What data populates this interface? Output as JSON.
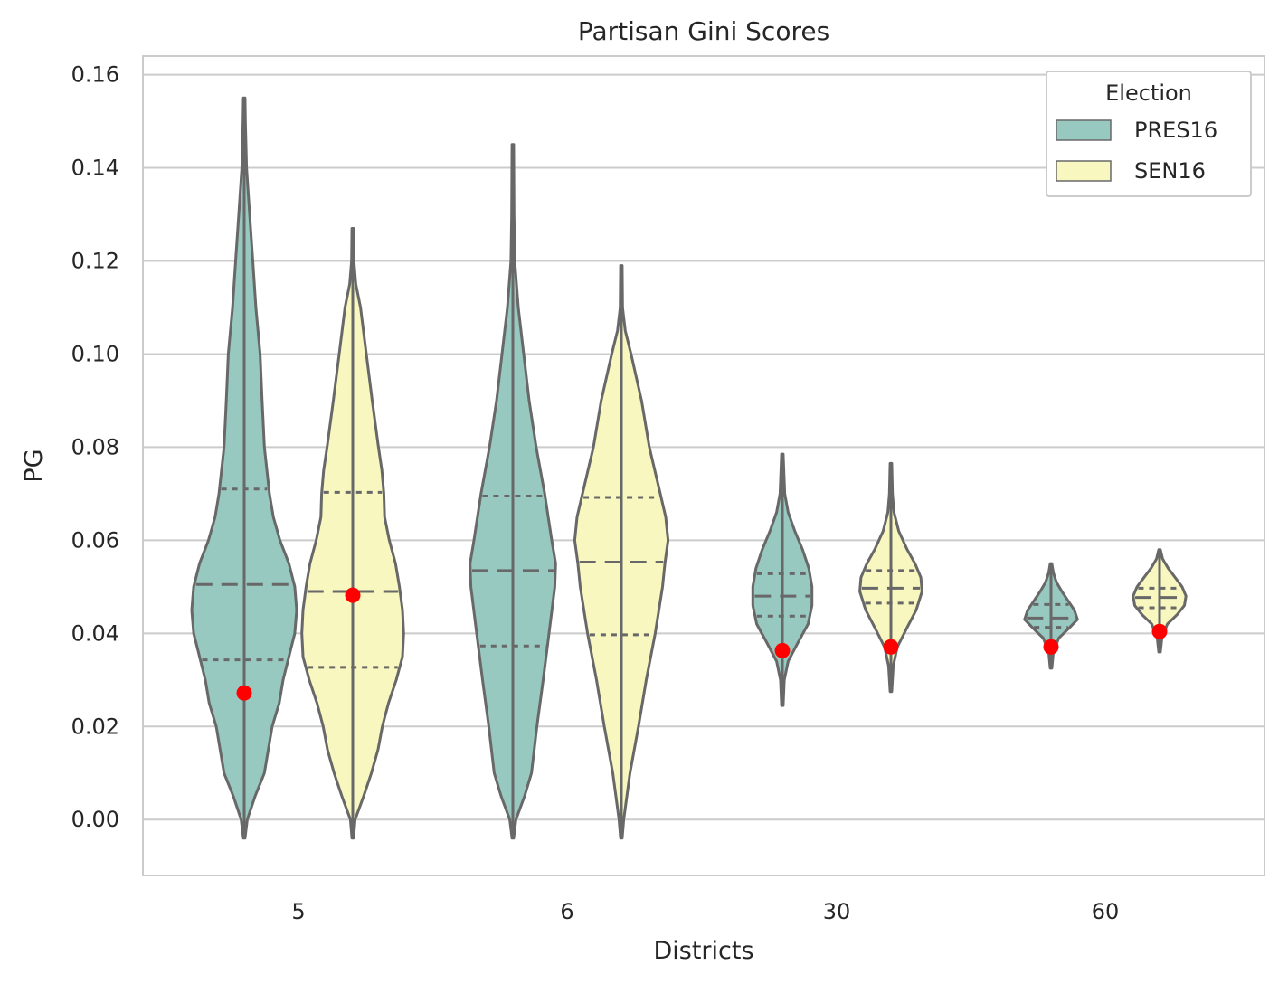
{
  "chart_data": {
    "type": "violin",
    "title": "Partisan Gini Scores",
    "xlabel": "Districts",
    "ylabel": "PG",
    "categories": [
      "5",
      "6",
      "30",
      "60"
    ],
    "ylim": [
      -0.012,
      0.164
    ],
    "yticks": [
      "0.00",
      "0.02",
      "0.04",
      "0.06",
      "0.08",
      "0.10",
      "0.12",
      "0.14",
      "0.16"
    ],
    "grid": true,
    "legend": {
      "title": "Election",
      "placement": "top-right"
    },
    "series": [
      {
        "name": "PRES16",
        "color": "#98c9c0",
        "groups": [
          {
            "category": "5",
            "min": -0.004,
            "max": 0.155,
            "q1": 0.0343,
            "median": 0.0505,
            "q3": 0.071,
            "marker": 0.0272,
            "profile": [
              [
                -0.004,
                0.002
              ],
              [
                0.0,
                0.008
              ],
              [
                0.005,
                0.028
              ],
              [
                0.01,
                0.052
              ],
              [
                0.015,
                0.062
              ],
              [
                0.02,
                0.072
              ],
              [
                0.025,
                0.09
              ],
              [
                0.03,
                0.1
              ],
              [
                0.035,
                0.115
              ],
              [
                0.04,
                0.13
              ],
              [
                0.045,
                0.135
              ],
              [
                0.05,
                0.13
              ],
              [
                0.055,
                0.115
              ],
              [
                0.06,
                0.092
              ],
              [
                0.065,
                0.075
              ],
              [
                0.07,
                0.065
              ],
              [
                0.08,
                0.052
              ],
              [
                0.09,
                0.046
              ],
              [
                0.1,
                0.041
              ],
              [
                0.11,
                0.03
              ],
              [
                0.12,
                0.022
              ],
              [
                0.13,
                0.014
              ],
              [
                0.14,
                0.006
              ],
              [
                0.15,
                0.003
              ],
              [
                0.155,
                0.002
              ]
            ]
          },
          {
            "category": "6",
            "min": -0.004,
            "max": 0.145,
            "q1": 0.0373,
            "median": 0.0535,
            "q3": 0.0695,
            "marker": null,
            "profile": [
              [
                -0.004,
                0.002
              ],
              [
                0.0,
                0.008
              ],
              [
                0.005,
                0.03
              ],
              [
                0.01,
                0.048
              ],
              [
                0.02,
                0.062
              ],
              [
                0.03,
                0.078
              ],
              [
                0.04,
                0.093
              ],
              [
                0.05,
                0.108
              ],
              [
                0.055,
                0.11
              ],
              [
                0.06,
                0.1
              ],
              [
                0.07,
                0.082
              ],
              [
                0.08,
                0.06
              ],
              [
                0.09,
                0.042
              ],
              [
                0.1,
                0.028
              ],
              [
                0.11,
                0.014
              ],
              [
                0.12,
                0.005
              ],
              [
                0.13,
                0.003
              ],
              [
                0.145,
                0.002
              ]
            ]
          }
        ]
      },
      {
        "name": "SEN16",
        "color": "#f8f7bf",
        "groups": [
          {
            "category": "5",
            "min": -0.004,
            "max": 0.127,
            "q1": 0.0327,
            "median": 0.049,
            "q3": 0.0703,
            "marker": 0.0482,
            "profile": [
              [
                -0.004,
                0.002
              ],
              [
                0.0,
                0.006
              ],
              [
                0.005,
                0.028
              ],
              [
                0.01,
                0.048
              ],
              [
                0.015,
                0.065
              ],
              [
                0.02,
                0.076
              ],
              [
                0.025,
                0.092
              ],
              [
                0.03,
                0.112
              ],
              [
                0.035,
                0.128
              ],
              [
                0.04,
                0.131
              ],
              [
                0.045,
                0.128
              ],
              [
                0.05,
                0.12
              ],
              [
                0.055,
                0.11
              ],
              [
                0.06,
                0.094
              ],
              [
                0.065,
                0.082
              ],
              [
                0.07,
                0.08
              ],
              [
                0.075,
                0.075
              ],
              [
                0.08,
                0.066
              ],
              [
                0.09,
                0.05
              ],
              [
                0.1,
                0.035
              ],
              [
                0.11,
                0.02
              ],
              [
                0.115,
                0.008
              ],
              [
                0.12,
                0.003
              ],
              [
                0.127,
                0.002
              ]
            ]
          },
          {
            "category": "6",
            "min": -0.004,
            "max": 0.119,
            "q1": 0.0397,
            "median": 0.0553,
            "q3": 0.0692,
            "marker": null,
            "profile": [
              [
                -0.004,
                0.002
              ],
              [
                0.0,
                0.006
              ],
              [
                0.01,
                0.022
              ],
              [
                0.02,
                0.044
              ],
              [
                0.03,
                0.064
              ],
              [
                0.04,
                0.087
              ],
              [
                0.05,
                0.106
              ],
              [
                0.055,
                0.112
              ],
              [
                0.06,
                0.12
              ],
              [
                0.065,
                0.114
              ],
              [
                0.07,
                0.1
              ],
              [
                0.08,
                0.072
              ],
              [
                0.09,
                0.052
              ],
              [
                0.1,
                0.025
              ],
              [
                0.105,
                0.01
              ],
              [
                0.11,
                0.003
              ],
              [
                0.119,
                0.002
              ]
            ]
          }
        ]
      },
      {
        "name": "PRES16",
        "color": "#98c9c0",
        "groups": [
          {
            "category": "30",
            "min": 0.0245,
            "max": 0.0785,
            "q1": 0.0437,
            "median": 0.048,
            "q3": 0.0528,
            "marker": 0.0363,
            "profile": [
              [
                0.0245,
                0.002
              ],
              [
                0.03,
                0.005
              ],
              [
                0.034,
                0.015
              ],
              [
                0.038,
                0.04
              ],
              [
                0.042,
                0.066
              ],
              [
                0.046,
                0.076
              ],
              [
                0.05,
                0.076
              ],
              [
                0.054,
                0.068
              ],
              [
                0.058,
                0.052
              ],
              [
                0.062,
                0.032
              ],
              [
                0.066,
                0.015
              ],
              [
                0.07,
                0.006
              ],
              [
                0.0785,
                0.002
              ]
            ]
          }
        ]
      }
    ],
    "groups_by_category": {
      "30": {
        "SEN16": {
          "min": 0.0275,
          "max": 0.0765,
          "q1": 0.0465,
          "median": 0.0497,
          "q3": 0.0535,
          "marker": 0.0371,
          "profile": [
            [
              0.0275,
              0.002
            ],
            [
              0.033,
              0.006
            ],
            [
              0.037,
              0.016
            ],
            [
              0.041,
              0.04
            ],
            [
              0.045,
              0.065
            ],
            [
              0.049,
              0.08
            ],
            [
              0.052,
              0.077
            ],
            [
              0.055,
              0.062
            ],
            [
              0.058,
              0.042
            ],
            [
              0.062,
              0.02
            ],
            [
              0.066,
              0.008
            ],
            [
              0.07,
              0.004
            ],
            [
              0.0765,
              0.002
            ]
          ]
        }
      },
      "60": {
        "PRES16": {
          "min": 0.0325,
          "max": 0.055,
          "q1": 0.0413,
          "median": 0.0433,
          "q3": 0.0462,
          "marker": 0.0371,
          "profile": [
            [
              0.0325,
              0.002
            ],
            [
              0.036,
              0.006
            ],
            [
              0.039,
              0.02
            ],
            [
              0.041,
              0.045
            ],
            [
              0.043,
              0.068
            ],
            [
              0.045,
              0.06
            ],
            [
              0.047,
              0.044
            ],
            [
              0.049,
              0.028
            ],
            [
              0.051,
              0.014
            ],
            [
              0.053,
              0.006
            ],
            [
              0.055,
              0.002
            ]
          ]
        },
        "SEN16": {
          "min": 0.036,
          "max": 0.058,
          "q1": 0.0455,
          "median": 0.0477,
          "q3": 0.0497,
          "marker": 0.0404,
          "profile": [
            [
              0.036,
              0.002
            ],
            [
              0.039,
              0.006
            ],
            [
              0.042,
              0.02
            ],
            [
              0.044,
              0.045
            ],
            [
              0.046,
              0.064
            ],
            [
              0.048,
              0.068
            ],
            [
              0.05,
              0.058
            ],
            [
              0.052,
              0.04
            ],
            [
              0.054,
              0.022
            ],
            [
              0.056,
              0.008
            ],
            [
              0.058,
              0.002
            ]
          ]
        }
      }
    },
    "legend_entries": [
      {
        "name": "PRES16",
        "color": "#98c9c0"
      },
      {
        "name": "SEN16",
        "color": "#f8f7bf"
      }
    ],
    "marker_color": "#ff0000"
  }
}
